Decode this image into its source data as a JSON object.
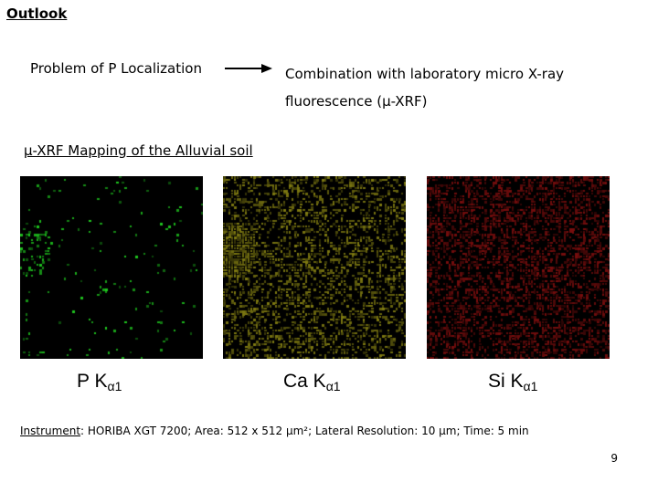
{
  "slide": {
    "title": "Outlook",
    "problem": "Problem of P Localization",
    "combination_line1": "Combination with laboratory micro X-ray",
    "combination_line2": "fluorescence (µ-XRF)",
    "section_heading": "µ-XRF Mapping of the Alluvial soil",
    "maps": [
      {
        "element": "P K",
        "line": "α1",
        "color": "#22dd22"
      },
      {
        "element": "Ca K",
        "line": "α1",
        "color": "#e8e020"
      },
      {
        "element": "Si K",
        "line": "α1",
        "color": "#ee1a1a"
      }
    ],
    "instrument_label": "Instrument",
    "instrument_text": ": HORIBA XGT 7200; Area: 512 x 512 µm²; Lateral Resolution: 10 µm; Time: 5 min",
    "page_number": "9"
  }
}
